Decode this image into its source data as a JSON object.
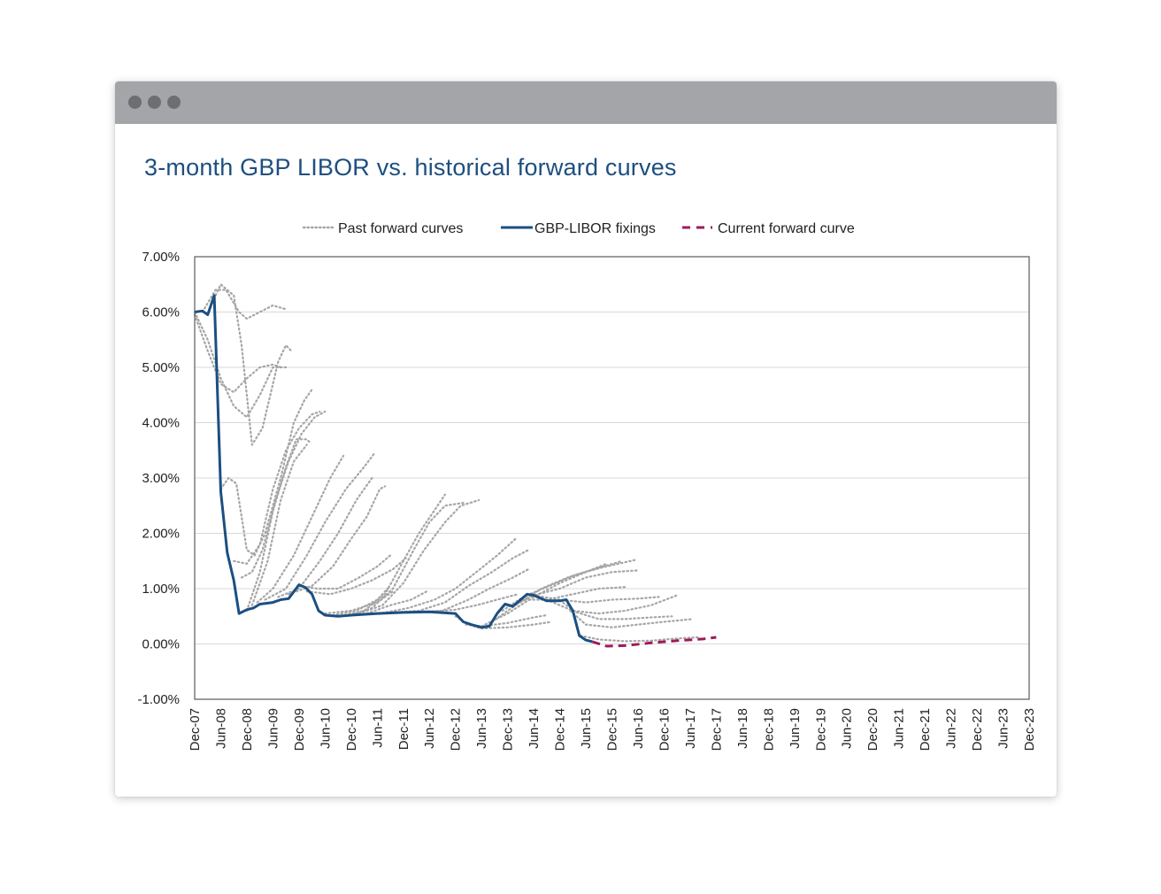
{
  "window": {
    "controls": [
      "close-dot",
      "minimize-dot",
      "maximize-dot"
    ]
  },
  "colors": {
    "title": "#1d4f80",
    "fixings": "#1b4f82",
    "forward": "#a6a6a6",
    "current": "#9c1b5c",
    "grid": "#d9d9d9"
  },
  "chart_data": {
    "type": "line",
    "title": "3-month GBP LIBOR vs. historical forward curves",
    "xlabel": "",
    "ylabel": "",
    "ylim": [
      -1.0,
      7.0
    ],
    "ytick_values": [
      -1.0,
      0.0,
      1.0,
      2.0,
      3.0,
      4.0,
      5.0,
      6.0,
      7.0
    ],
    "ytick_labels": [
      "-1.00%",
      "0.00%",
      "1.00%",
      "2.00%",
      "3.00%",
      "4.00%",
      "5.00%",
      "6.00%",
      "7.00%"
    ],
    "x_range": [
      "Dec-07",
      "Dec-23"
    ],
    "x_categories": [
      "Dec-07",
      "Jun-08",
      "Dec-08",
      "Jun-09",
      "Dec-09",
      "Jun-10",
      "Dec-10",
      "Jun-11",
      "Dec-11",
      "Jun-12",
      "Dec-12",
      "Jun-13",
      "Dec-13",
      "Jun-14",
      "Dec-14",
      "Jun-15",
      "Dec-15",
      "Jun-16",
      "Dec-16",
      "Jun-17",
      "Dec-17",
      "Jun-18",
      "Dec-18",
      "Jun-19",
      "Dec-19",
      "Jun-20",
      "Dec-20",
      "Jun-21",
      "Dec-21",
      "Jun-22",
      "Dec-22",
      "Jun-23",
      "Dec-23"
    ],
    "legend": {
      "position": "top",
      "entries": [
        "Past forward curves",
        "GBP-LIBOR fixings",
        "Current forward curve"
      ]
    },
    "series": [
      {
        "name": "GBP-LIBOR fixings",
        "style": "solid",
        "points": [
          [
            0.0,
            6.0
          ],
          [
            0.3,
            6.02
          ],
          [
            0.5,
            5.95
          ],
          [
            0.75,
            6.3
          ],
          [
            1.0,
            2.75
          ],
          [
            1.25,
            1.65
          ],
          [
            1.5,
            1.15
          ],
          [
            1.7,
            0.55
          ],
          [
            2.0,
            0.62
          ],
          [
            2.25,
            0.65
          ],
          [
            2.5,
            0.72
          ],
          [
            3.0,
            0.75
          ],
          [
            3.3,
            0.8
          ],
          [
            3.6,
            0.82
          ],
          [
            4.0,
            1.07
          ],
          [
            4.25,
            1.02
          ],
          [
            4.5,
            0.9
          ],
          [
            4.75,
            0.6
          ],
          [
            5.0,
            0.52
          ],
          [
            5.5,
            0.5
          ],
          [
            6.0,
            0.52
          ],
          [
            7.0,
            0.55
          ],
          [
            8.0,
            0.57
          ],
          [
            9.0,
            0.58
          ],
          [
            10.0,
            0.55
          ],
          [
            10.3,
            0.4
          ],
          [
            10.6,
            0.35
          ],
          [
            11.0,
            0.3
          ],
          [
            11.3,
            0.32
          ],
          [
            11.6,
            0.55
          ],
          [
            11.9,
            0.72
          ],
          [
            12.2,
            0.68
          ],
          [
            12.5,
            0.8
          ],
          [
            12.75,
            0.9
          ],
          [
            13.0,
            0.88
          ],
          [
            13.5,
            0.78
          ],
          [
            14.0,
            0.78
          ],
          [
            14.25,
            0.8
          ],
          [
            14.5,
            0.6
          ],
          [
            14.75,
            0.15
          ],
          [
            15.0,
            0.07
          ],
          [
            15.25,
            0.04
          ]
        ]
      },
      {
        "name": "Current forward curve",
        "style": "dashed",
        "points": [
          [
            15.25,
            0.04
          ],
          [
            15.8,
            -0.04
          ],
          [
            16.5,
            -0.03
          ],
          [
            17.5,
            0.02
          ],
          [
            18.5,
            0.06
          ],
          [
            19.5,
            0.09
          ],
          [
            20.0,
            0.12
          ]
        ]
      }
    ],
    "past_forward_curves": [
      [
        [
          0.0,
          5.95
        ],
        [
          0.5,
          5.3
        ],
        [
          1.0,
          4.7
        ],
        [
          1.5,
          4.55
        ],
        [
          2.0,
          4.8
        ],
        [
          2.5,
          5.0
        ],
        [
          3.0,
          5.05
        ],
        [
          3.3,
          5.0
        ]
      ],
      [
        [
          0.3,
          6.0
        ],
        [
          0.8,
          6.4
        ],
        [
          1.2,
          6.4
        ],
        [
          1.7,
          6.0
        ],
        [
          2.0,
          5.88
        ],
        [
          2.5,
          6.0
        ],
        [
          3.0,
          6.12
        ],
        [
          3.5,
          6.05
        ]
      ],
      [
        [
          0.6,
          6.1
        ],
        [
          1.0,
          6.5
        ],
        [
          1.5,
          6.3
        ],
        [
          1.8,
          5.4
        ],
        [
          2.2,
          3.6
        ],
        [
          2.6,
          3.9
        ],
        [
          3.2,
          5.1
        ],
        [
          3.5,
          5.4
        ],
        [
          3.7,
          5.3
        ]
      ],
      [
        [
          0.0,
          6.0
        ],
        [
          0.5,
          5.5
        ],
        [
          1.0,
          4.8
        ],
        [
          1.5,
          4.3
        ],
        [
          2.0,
          4.1
        ],
        [
          2.5,
          4.5
        ],
        [
          3.0,
          5.0
        ],
        [
          3.5,
          5.0
        ]
      ],
      [
        [
          1.0,
          2.8
        ],
        [
          1.3,
          3.0
        ],
        [
          1.6,
          2.9
        ],
        [
          2.0,
          1.7
        ],
        [
          2.3,
          1.6
        ],
        [
          2.7,
          2.0
        ],
        [
          3.3,
          3.0
        ],
        [
          3.8,
          4.0
        ],
        [
          4.2,
          4.4
        ],
        [
          4.5,
          4.6
        ]
      ],
      [
        [
          1.5,
          1.5
        ],
        [
          2.0,
          1.45
        ],
        [
          2.5,
          1.8
        ],
        [
          3.0,
          2.8
        ],
        [
          3.5,
          3.5
        ],
        [
          4.0,
          3.9
        ],
        [
          4.5,
          4.15
        ],
        [
          4.8,
          4.2
        ]
      ],
      [
        [
          1.8,
          1.2
        ],
        [
          2.2,
          1.3
        ],
        [
          2.6,
          1.7
        ],
        [
          3.1,
          2.6
        ],
        [
          3.6,
          3.3
        ],
        [
          4.1,
          3.8
        ],
        [
          4.6,
          4.1
        ],
        [
          5.0,
          4.2
        ]
      ],
      [
        [
          2.0,
          0.6
        ],
        [
          2.5,
          1.3
        ],
        [
          3.0,
          2.4
        ],
        [
          3.5,
          3.2
        ],
        [
          3.9,
          3.7
        ],
        [
          4.3,
          3.7
        ],
        [
          4.4,
          3.65
        ]
      ],
      [
        [
          2.2,
          0.7
        ],
        [
          2.8,
          1.5
        ],
        [
          3.3,
          2.6
        ],
        [
          3.8,
          3.3
        ],
        [
          4.3,
          3.6
        ]
      ],
      [
        [
          2.4,
          0.75
        ],
        [
          3.0,
          1.0
        ],
        [
          3.8,
          1.6
        ],
        [
          4.5,
          2.3
        ],
        [
          5.2,
          3.0
        ],
        [
          5.7,
          3.4
        ]
      ],
      [
        [
          2.7,
          0.8
        ],
        [
          3.5,
          1.0
        ],
        [
          4.3,
          1.6
        ],
        [
          5.0,
          2.2
        ],
        [
          5.8,
          2.8
        ],
        [
          6.5,
          3.2
        ],
        [
          6.9,
          3.45
        ]
      ],
      [
        [
          3.2,
          0.85
        ],
        [
          4.0,
          1.0
        ],
        [
          4.8,
          1.5
        ],
        [
          5.5,
          2.0
        ],
        [
          6.2,
          2.6
        ],
        [
          6.8,
          3.0
        ]
      ],
      [
        [
          3.6,
          0.9
        ],
        [
          4.5,
          1.05
        ],
        [
          5.3,
          1.4
        ],
        [
          6.0,
          1.9
        ],
        [
          6.6,
          2.3
        ],
        [
          7.1,
          2.8
        ],
        [
          7.3,
          2.85
        ]
      ],
      [
        [
          4.0,
          1.05
        ],
        [
          4.7,
          1.0
        ],
        [
          5.5,
          1.0
        ],
        [
          6.3,
          1.2
        ],
        [
          7.0,
          1.4
        ],
        [
          7.5,
          1.6
        ]
      ],
      [
        [
          4.3,
          0.95
        ],
        [
          5.2,
          0.9
        ],
        [
          6.0,
          1.0
        ],
        [
          6.8,
          1.15
        ],
        [
          7.6,
          1.35
        ],
        [
          8.1,
          1.55
        ]
      ],
      [
        [
          5.0,
          0.55
        ],
        [
          6.0,
          0.6
        ],
        [
          7.0,
          0.75
        ],
        [
          7.6,
          0.95
        ]
      ],
      [
        [
          5.3,
          0.52
        ],
        [
          6.2,
          0.6
        ],
        [
          7.0,
          0.8
        ],
        [
          7.5,
          1.05
        ]
      ],
      [
        [
          5.6,
          0.5
        ],
        [
          6.5,
          0.6
        ],
        [
          7.3,
          0.9
        ],
        [
          8.0,
          1.5
        ],
        [
          8.6,
          2.0
        ],
        [
          9.1,
          2.35
        ],
        [
          9.6,
          2.7
        ]
      ],
      [
        [
          6.0,
          0.52
        ],
        [
          6.8,
          0.65
        ],
        [
          7.6,
          1.0
        ],
        [
          8.4,
          1.7
        ],
        [
          9.0,
          2.2
        ],
        [
          9.6,
          2.5
        ],
        [
          10.3,
          2.55
        ]
      ],
      [
        [
          6.3,
          0.55
        ],
        [
          7.2,
          0.7
        ],
        [
          8.0,
          1.1
        ],
        [
          8.8,
          1.7
        ],
        [
          9.6,
          2.2
        ],
        [
          10.2,
          2.5
        ],
        [
          10.9,
          2.6
        ]
      ],
      [
        [
          6.6,
          0.55
        ],
        [
          7.5,
          0.7
        ],
        [
          8.3,
          0.8
        ],
        [
          8.9,
          0.95
        ]
      ],
      [
        [
          7.2,
          0.56
        ],
        [
          8.2,
          0.65
        ],
        [
          9.2,
          0.8
        ],
        [
          10.0,
          1.0
        ],
        [
          10.8,
          1.3
        ],
        [
          11.6,
          1.6
        ],
        [
          12.3,
          1.9
        ]
      ],
      [
        [
          7.6,
          0.57
        ],
        [
          8.6,
          0.6
        ],
        [
          9.6,
          0.75
        ],
        [
          10.5,
          1.05
        ],
        [
          11.4,
          1.3
        ],
        [
          12.2,
          1.55
        ],
        [
          12.8,
          1.7
        ]
      ],
      [
        [
          8.3,
          0.58
        ],
        [
          9.5,
          0.6
        ],
        [
          10.5,
          0.8
        ],
        [
          11.3,
          1.0
        ],
        [
          12.2,
          1.2
        ],
        [
          12.8,
          1.35
        ]
      ],
      [
        [
          9.0,
          0.58
        ],
        [
          10.0,
          0.62
        ],
        [
          10.8,
          0.7
        ],
        [
          11.6,
          0.8
        ],
        [
          12.4,
          0.9
        ]
      ],
      [
        [
          10.0,
          0.5
        ],
        [
          10.5,
          0.35
        ],
        [
          11.0,
          0.28
        ],
        [
          12.0,
          0.3
        ],
        [
          13.0,
          0.35
        ],
        [
          13.7,
          0.4
        ]
      ],
      [
        [
          10.4,
          0.35
        ],
        [
          11.0,
          0.32
        ],
        [
          12.0,
          0.38
        ],
        [
          13.0,
          0.48
        ],
        [
          13.5,
          0.52
        ]
      ],
      [
        [
          11.0,
          0.32
        ],
        [
          12.0,
          0.55
        ],
        [
          13.0,
          0.85
        ],
        [
          14.0,
          1.1
        ],
        [
          15.0,
          1.3
        ],
        [
          15.8,
          1.45
        ]
      ],
      [
        [
          11.4,
          0.4
        ],
        [
          12.3,
          0.7
        ],
        [
          13.3,
          1.0
        ],
        [
          14.3,
          1.2
        ],
        [
          15.3,
          1.35
        ],
        [
          16.4,
          1.5
        ]
      ],
      [
        [
          11.8,
          0.6
        ],
        [
          12.6,
          0.85
        ],
        [
          13.6,
          1.05
        ],
        [
          14.6,
          1.25
        ],
        [
          15.6,
          1.38
        ],
        [
          16.9,
          1.52
        ]
      ],
      [
        [
          12.2,
          0.68
        ],
        [
          13.0,
          0.88
        ],
        [
          14.0,
          1.0
        ],
        [
          15.0,
          1.2
        ],
        [
          16.0,
          1.3
        ],
        [
          17.0,
          1.33
        ]
      ],
      [
        [
          12.5,
          0.8
        ],
        [
          13.5,
          0.8
        ],
        [
          14.5,
          0.9
        ],
        [
          15.5,
          1.0
        ],
        [
          16.6,
          1.03
        ]
      ],
      [
        [
          13.0,
          0.88
        ],
        [
          14.0,
          0.8
        ],
        [
          15.0,
          0.75
        ],
        [
          16.0,
          0.8
        ],
        [
          17.0,
          0.82
        ],
        [
          17.8,
          0.85
        ]
      ],
      [
        [
          13.5,
          0.8
        ],
        [
          14.5,
          0.6
        ],
        [
          15.5,
          0.55
        ],
        [
          16.5,
          0.6
        ],
        [
          17.5,
          0.7
        ],
        [
          18.5,
          0.88
        ]
      ],
      [
        [
          14.0,
          0.79
        ],
        [
          14.6,
          0.58
        ],
        [
          15.5,
          0.45
        ],
        [
          16.5,
          0.45
        ],
        [
          17.5,
          0.48
        ],
        [
          18.3,
          0.5
        ]
      ],
      [
        [
          14.4,
          0.6
        ],
        [
          15.0,
          0.35
        ],
        [
          16.0,
          0.3
        ],
        [
          17.0,
          0.35
        ],
        [
          18.0,
          0.4
        ],
        [
          19.1,
          0.45
        ]
      ],
      [
        [
          14.8,
          0.15
        ],
        [
          15.5,
          0.08
        ],
        [
          16.5,
          0.05
        ],
        [
          17.5,
          0.06
        ],
        [
          18.5,
          0.1
        ],
        [
          19.3,
          0.12
        ]
      ]
    ]
  }
}
